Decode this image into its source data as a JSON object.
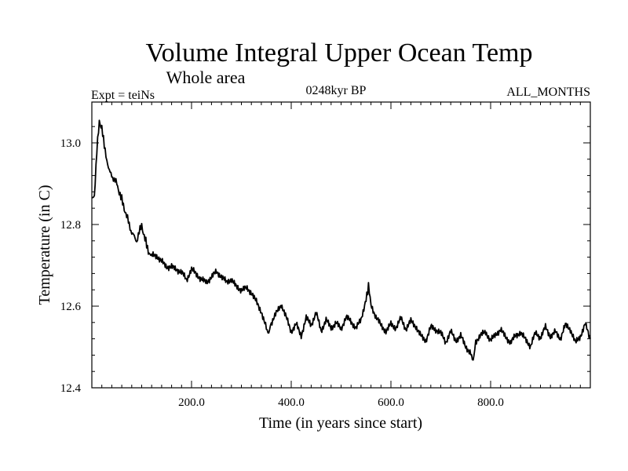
{
  "chart_data": {
    "type": "line",
    "title": "Volume Integral Upper Ocean Temp",
    "subtitle": "Whole area",
    "experiment_label": "Expt = teiNs",
    "period_label": "0248kyr BP",
    "months_label": "ALL_MONTHS",
    "xlabel": "Time (in years since start)",
    "ylabel": "Temperature (in C)",
    "xlim": [
      0,
      1000
    ],
    "ylim": [
      12.4,
      13.1
    ],
    "x_ticks": [
      200,
      400,
      600,
      800
    ],
    "x_tick_labels": [
      "200.0",
      "400.0",
      "600.0",
      "800.0"
    ],
    "y_ticks": [
      12.4,
      12.6,
      12.8,
      13.0
    ],
    "y_tick_labels": [
      "12.4",
      "12.6",
      "12.8",
      "13.0"
    ],
    "grid": false,
    "series": [
      {
        "name": "Volume Integral Upper Ocean Temp",
        "x": [
          0,
          5,
          10,
          15,
          20,
          25,
          30,
          35,
          40,
          45,
          50,
          55,
          60,
          65,
          70,
          75,
          80,
          85,
          90,
          95,
          100,
          105,
          110,
          115,
          120,
          130,
          140,
          150,
          160,
          170,
          180,
          190,
          200,
          210,
          220,
          230,
          240,
          250,
          260,
          270,
          280,
          290,
          300,
          310,
          320,
          330,
          340,
          350,
          355,
          360,
          370,
          380,
          390,
          400,
          410,
          420,
          430,
          440,
          450,
          460,
          470,
          480,
          490,
          500,
          510,
          520,
          530,
          540,
          550,
          555,
          560,
          570,
          580,
          590,
          600,
          610,
          620,
          630,
          640,
          650,
          660,
          670,
          680,
          690,
          700,
          710,
          720,
          730,
          740,
          750,
          760,
          765,
          770,
          780,
          790,
          800,
          810,
          820,
          830,
          840,
          850,
          860,
          870,
          880,
          890,
          900,
          910,
          920,
          930,
          940,
          950,
          960,
          970,
          980,
          990,
          1000
        ],
        "values": [
          12.86,
          12.87,
          12.98,
          13.05,
          13.04,
          12.99,
          12.96,
          12.93,
          12.92,
          12.91,
          12.9,
          12.88,
          12.86,
          12.84,
          12.82,
          12.8,
          12.78,
          12.77,
          12.76,
          12.78,
          12.8,
          12.77,
          12.75,
          12.73,
          12.72,
          12.72,
          12.71,
          12.7,
          12.7,
          12.69,
          12.68,
          12.66,
          12.69,
          12.68,
          12.67,
          12.66,
          12.67,
          12.68,
          12.67,
          12.66,
          12.67,
          12.65,
          12.64,
          12.64,
          12.63,
          12.61,
          12.59,
          12.55,
          12.53,
          12.56,
          12.58,
          12.6,
          12.57,
          12.54,
          12.56,
          12.53,
          12.57,
          12.55,
          12.58,
          12.54,
          12.57,
          12.55,
          12.56,
          12.54,
          12.57,
          12.56,
          12.55,
          12.57,
          12.62,
          12.65,
          12.6,
          12.57,
          12.55,
          12.54,
          12.56,
          12.55,
          12.57,
          12.54,
          12.56,
          12.55,
          12.53,
          12.52,
          12.55,
          12.54,
          12.53,
          12.51,
          12.54,
          12.52,
          12.53,
          12.5,
          12.48,
          12.47,
          12.51,
          12.53,
          12.54,
          12.52,
          12.53,
          12.54,
          12.52,
          12.51,
          12.53,
          12.54,
          12.52,
          12.5,
          12.53,
          12.52,
          12.55,
          12.53,
          12.54,
          12.52,
          12.55,
          12.54,
          12.51,
          12.53,
          12.56,
          12.52
        ]
      }
    ]
  }
}
